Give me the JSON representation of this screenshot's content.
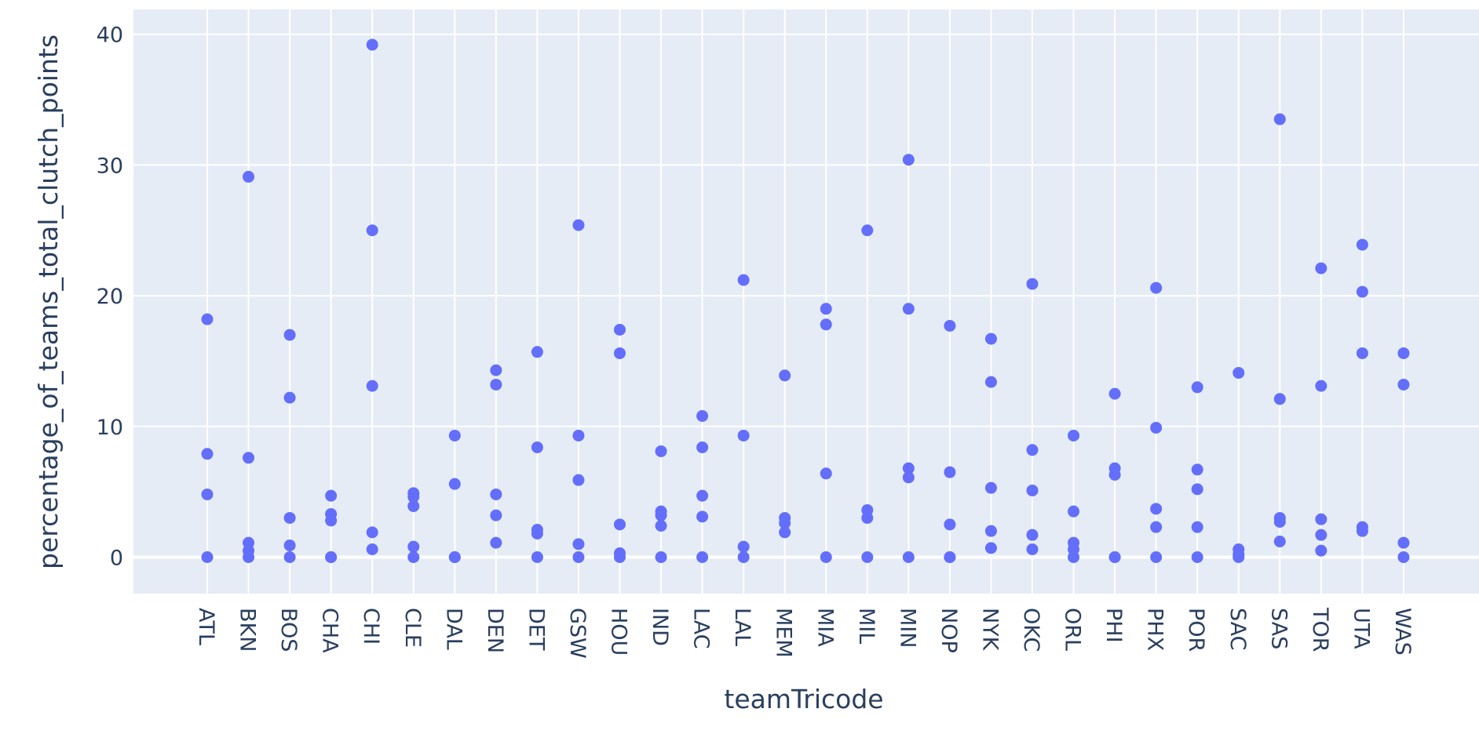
{
  "chart_data": {
    "type": "scatter",
    "title": "",
    "xlabel": "teamTricode",
    "ylabel": "percentage_of_teams_total_clutch_points",
    "ylim": [
      -2.8,
      42
    ],
    "yticks": [
      0,
      10,
      20,
      30,
      40
    ],
    "grid": true,
    "legend": "none",
    "colors": {
      "plot_bg": "#e5ecf6",
      "grid": "#ffffff",
      "marker": "#636efa",
      "text": "#2a3f5f"
    },
    "categories": [
      "ATL",
      "BKN",
      "BOS",
      "CHA",
      "CHI",
      "CLE",
      "DAL",
      "DEN",
      "DET",
      "GSW",
      "HOU",
      "IND",
      "LAC",
      "LAL",
      "MEM",
      "MIA",
      "MIL",
      "MIN",
      "NOP",
      "NYK",
      "OKC",
      "ORL",
      "PHI",
      "PHX",
      "POR",
      "SAC",
      "SAS",
      "TOR",
      "UTA",
      "WAS"
    ],
    "points": [
      {
        "x": "ATL",
        "y": [
          18.2,
          7.9,
          4.8,
          0
        ]
      },
      {
        "x": "BKN",
        "y": [
          29.1,
          7.6,
          1.1,
          0.5,
          0
        ]
      },
      {
        "x": "BOS",
        "y": [
          17.0,
          12.2,
          3.0,
          0.9,
          0
        ]
      },
      {
        "x": "CHA",
        "y": [
          4.7,
          3.3,
          2.8,
          0,
          0
        ]
      },
      {
        "x": "CHI",
        "y": [
          39.2,
          25.0,
          13.1,
          1.9,
          0.6
        ]
      },
      {
        "x": "CLE",
        "y": [
          4.9,
          4.6,
          3.9,
          0.8,
          0
        ]
      },
      {
        "x": "DAL",
        "y": [
          9.3,
          5.6,
          0,
          0
        ]
      },
      {
        "x": "DEN",
        "y": [
          14.3,
          13.2,
          4.8,
          3.2,
          1.1
        ]
      },
      {
        "x": "DET",
        "y": [
          15.7,
          8.4,
          2.1,
          1.8,
          0
        ]
      },
      {
        "x": "GSW",
        "y": [
          25.4,
          9.3,
          5.9,
          1.0,
          0
        ]
      },
      {
        "x": "HOU",
        "y": [
          17.4,
          15.6,
          2.5,
          0.3,
          0
        ]
      },
      {
        "x": "IND",
        "y": [
          8.1,
          3.5,
          3.2,
          2.4,
          0
        ]
      },
      {
        "x": "LAC",
        "y": [
          10.8,
          8.4,
          4.7,
          3.1,
          0
        ]
      },
      {
        "x": "LAL",
        "y": [
          21.2,
          9.3,
          0.8,
          0
        ]
      },
      {
        "x": "MEM",
        "y": [
          13.9,
          3.0,
          2.6,
          1.9
        ]
      },
      {
        "x": "MIA",
        "y": [
          19.0,
          17.8,
          6.4,
          0
        ]
      },
      {
        "x": "MIL",
        "y": [
          25.0,
          3.6,
          3.0,
          0
        ]
      },
      {
        "x": "MIN",
        "y": [
          30.4,
          19.0,
          6.8,
          6.1,
          0
        ]
      },
      {
        "x": "NOP",
        "y": [
          17.7,
          6.5,
          2.5,
          0,
          0
        ]
      },
      {
        "x": "NYK",
        "y": [
          16.7,
          13.4,
          5.3,
          2.0,
          0.7
        ]
      },
      {
        "x": "OKC",
        "y": [
          20.9,
          8.2,
          5.1,
          1.7,
          0.6
        ]
      },
      {
        "x": "ORL",
        "y": [
          9.3,
          3.5,
          1.1,
          0.6,
          0
        ]
      },
      {
        "x": "PHI",
        "y": [
          12.5,
          6.8,
          6.3,
          0,
          0
        ]
      },
      {
        "x": "PHX",
        "y": [
          20.6,
          9.9,
          3.7,
          2.3,
          0
        ]
      },
      {
        "x": "POR",
        "y": [
          13.0,
          6.7,
          5.2,
          2.3,
          0
        ]
      },
      {
        "x": "SAC",
        "y": [
          14.1,
          0.6,
          0.2,
          0
        ]
      },
      {
        "x": "SAS",
        "y": [
          33.5,
          12.1,
          3.0,
          2.7,
          1.2
        ]
      },
      {
        "x": "TOR",
        "y": [
          22.1,
          13.1,
          2.9,
          1.7,
          0.5
        ]
      },
      {
        "x": "UTA",
        "y": [
          23.9,
          20.3,
          15.6,
          2.3,
          2.0
        ]
      },
      {
        "x": "WAS",
        "y": [
          15.6,
          13.2,
          1.1,
          0
        ]
      }
    ]
  }
}
